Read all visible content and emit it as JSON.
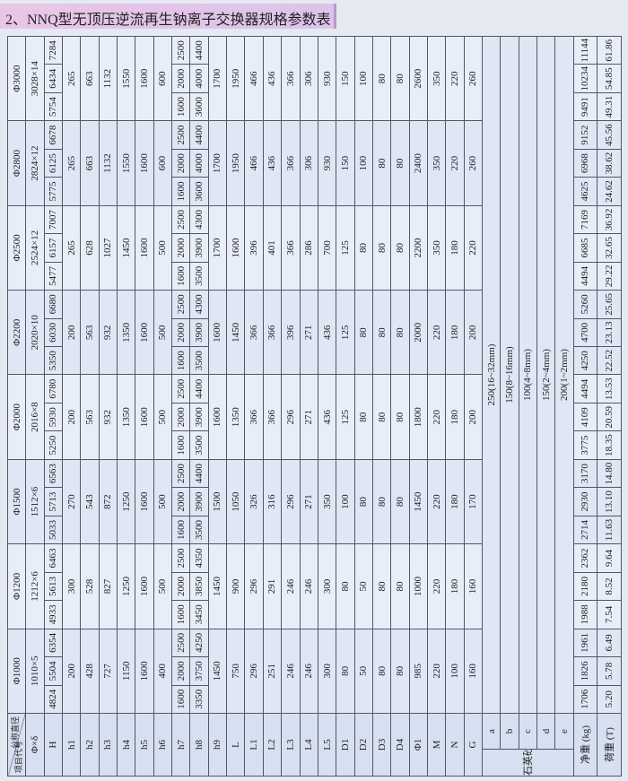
{
  "title": "2、NNQ型无顶压逆流再生钠离子交换器规格参数表",
  "table": {
    "corner": {
      "top": "公称直径",
      "bottom": "项目代号"
    },
    "models": [
      "Φ1000",
      "Φ1200",
      "Φ1500",
      "Φ2000",
      "Φ2200",
      "Φ2500",
      "Φ2800",
      "Φ3000"
    ],
    "rows": [
      {
        "label": "Φ×δ",
        "values": [
          "1010×5",
          "1212×6",
          "1512×6",
          "2016×8",
          "2020×10",
          "2524×12",
          "2824×12",
          "3028×14"
        ]
      },
      {
        "label": "H",
        "values": [
          4824,
          5504,
          6354,
          4933,
          5613,
          6463,
          5033,
          5713,
          6563,
          5250,
          5930,
          6780,
          5350,
          6030,
          6680,
          5477,
          6157,
          7007,
          5775,
          6125,
          6678,
          5754,
          6434,
          7284
        ]
      },
      {
        "label": "h1",
        "values": [
          200,
          300,
          270,
          200,
          200,
          265,
          265,
          265
        ]
      },
      {
        "label": "h2",
        "values": [
          428,
          528,
          543,
          563,
          563,
          628,
          663,
          663
        ]
      },
      {
        "label": "h3",
        "values": [
          727,
          827,
          872,
          932,
          932,
          1027,
          1132,
          1132
        ]
      },
      {
        "label": "h4",
        "values": [
          1150,
          1250,
          1250,
          1350,
          1350,
          1450,
          1550,
          1550
        ]
      },
      {
        "label": "h5",
        "values": [
          1600,
          1600,
          1600,
          1600,
          1600,
          1600,
          1600,
          1600
        ]
      },
      {
        "label": "h6",
        "values": [
          400,
          500,
          500,
          500,
          500,
          500,
          600,
          600
        ]
      },
      {
        "label": "h7",
        "values": [
          1600,
          2000,
          2500,
          1600,
          2000,
          2500,
          1600,
          2000,
          2500,
          1600,
          2000,
          2500,
          1600,
          2000,
          2500,
          1600,
          2000,
          2500,
          1600,
          2000,
          2500,
          1600,
          2000,
          2500
        ]
      },
      {
        "label": "h8",
        "values": [
          3350,
          3750,
          4250,
          3450,
          3850,
          4350,
          3500,
          3900,
          4400,
          3500,
          3900,
          4400,
          3500,
          3900,
          4300,
          3500,
          3900,
          4300,
          3600,
          4000,
          4400,
          3600,
          4000,
          4400
        ]
      },
      {
        "label": "h9",
        "values": [
          1450,
          1450,
          1500,
          1600,
          1600,
          1700,
          1700,
          1700
        ]
      },
      {
        "label": "L",
        "values": [
          750,
          900,
          1050,
          1350,
          1450,
          1600,
          1950,
          1950
        ]
      },
      {
        "label": "L1",
        "values": [
          296,
          296,
          326,
          366,
          366,
          396,
          466,
          466
        ]
      },
      {
        "label": "L2",
        "values": [
          251,
          291,
          316,
          366,
          366,
          401,
          436,
          436
        ]
      },
      {
        "label": "L3",
        "values": [
          246,
          246,
          296,
          296,
          396,
          366,
          366,
          366
        ]
      },
      {
        "label": "L4",
        "values": [
          246,
          246,
          271,
          271,
          271,
          286,
          306,
          306
        ]
      },
      {
        "label": "L5",
        "values": [
          300,
          300,
          350,
          436,
          436,
          700,
          930,
          930
        ]
      },
      {
        "label": "D1",
        "values": [
          80,
          80,
          100,
          125,
          125,
          125,
          150,
          150
        ]
      },
      {
        "label": "D2",
        "values": [
          50,
          50,
          80,
          80,
          80,
          80,
          100,
          100
        ]
      },
      {
        "label": "D3",
        "values": [
          80,
          80,
          80,
          80,
          80,
          80,
          80,
          80
        ]
      },
      {
        "label": "D4",
        "values": [
          80,
          80,
          80,
          80,
          80,
          80,
          80,
          80
        ]
      },
      {
        "label": "Φ1",
        "values": [
          985,
          1000,
          1450,
          1800,
          2000,
          2200,
          2400,
          2600
        ]
      },
      {
        "label": "M",
        "values": [
          220,
          220,
          220,
          220,
          220,
          350,
          350,
          350
        ]
      },
      {
        "label": "N",
        "values": [
          100,
          180,
          180,
          180,
          180,
          180,
          220,
          220
        ]
      },
      {
        "label": "G",
        "values": [
          160,
          160,
          170,
          200,
          200,
          220,
          260,
          260
        ]
      }
    ],
    "sand": {
      "label": "石英砂层厚",
      "rows": [
        {
          "label": "a",
          "values": [
            "250(16~32mm)"
          ]
        },
        {
          "label": "b",
          "values": [
            "150(8~16mm)"
          ]
        },
        {
          "label": "c",
          "values": [
            "100(4~8mm)"
          ]
        },
        {
          "label": "d",
          "values": [
            "150(2~4mm)"
          ]
        },
        {
          "label": "e",
          "values": [
            "200(1~2mm)"
          ]
        }
      ]
    },
    "weights": [
      {
        "label": "净重 (kg)",
        "values": [
          1706,
          1826,
          1961,
          1988,
          2180,
          2362,
          2714,
          2930,
          3170,
          3775,
          4109,
          4494,
          4250,
          4700,
          5260,
          4494,
          6685,
          7169,
          4625,
          6968,
          9152,
          9491,
          10234,
          11144
        ]
      },
      {
        "label": "荷重 (T)",
        "values": [
          "5.20",
          "5.78",
          "6.49",
          "7.54",
          "8.52",
          "9.64",
          "11.63",
          "13.10",
          "14.80",
          "18.35",
          "20.59",
          "13.53",
          "22.52",
          "23.13",
          "25.65",
          "29.22",
          "32.65",
          "36.92",
          "24.62",
          "38.62",
          "45.56",
          "49.31",
          "54.85",
          "61.86"
        ]
      }
    ]
  }
}
